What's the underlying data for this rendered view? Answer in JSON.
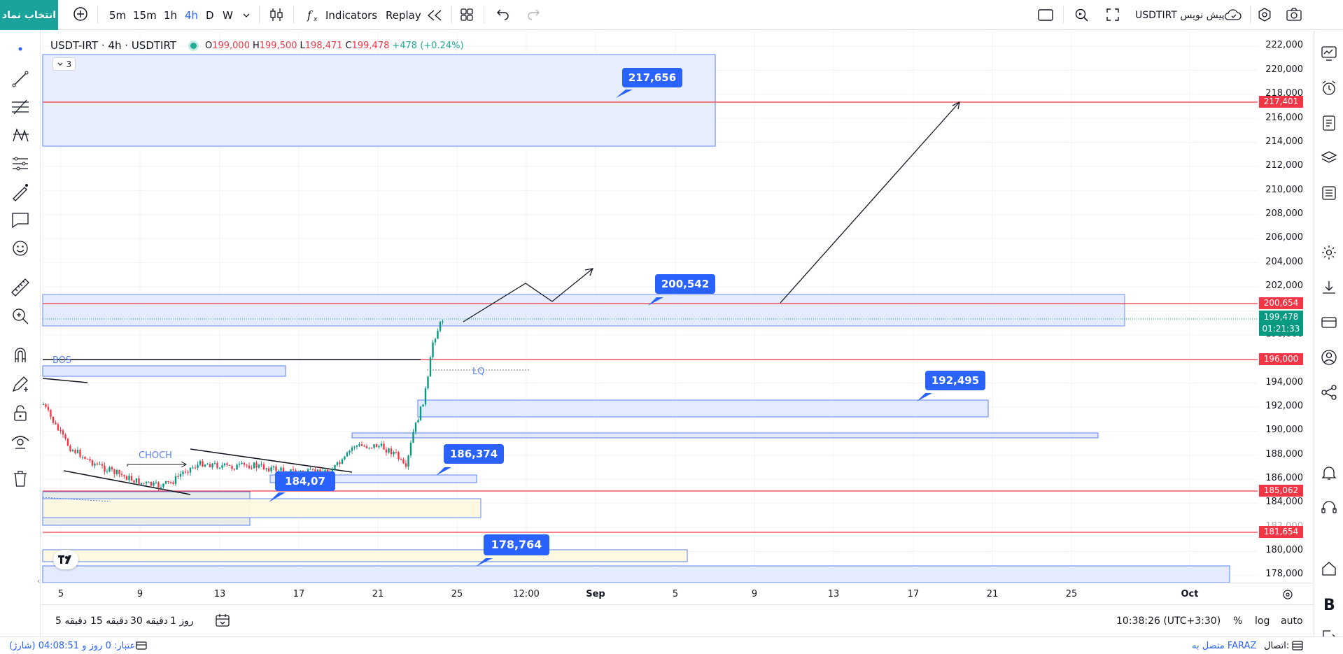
{
  "toolbar": {
    "symbol_search": "انتخاب نماد",
    "intervals": [
      "5m",
      "15m",
      "1h",
      "4h",
      "D",
      "W"
    ],
    "active_interval": "4h",
    "indicators_label": "Indicators",
    "replay_label": "Replay",
    "symbol_right": "USDTIRT پیش نویس"
  },
  "legend": {
    "symbol": "USDT-IRT · 4h · USDTIRT",
    "o_label": "O",
    "o_value": "199,000",
    "h_label": "H",
    "h_value": "199,500",
    "l_label": "L",
    "l_value": "198,471",
    "c_label": "C",
    "c_value": "199,478",
    "change": "+478 (+0.24%)",
    "indicator_count": "3"
  },
  "price_axis": {
    "ticks": [
      "222,000",
      "220,000",
      "218,000",
      "216,000",
      "214,000",
      "212,000",
      "210,000",
      "208,000",
      "206,000",
      "204,000",
      "202,000",
      "198,000",
      "194,000",
      "192,000",
      "190,000",
      "188,000",
      "186,000",
      "184,000",
      "182,000",
      "180,000",
      "178,000"
    ],
    "horizontal_levels": [
      "217,401",
      "200,654",
      "196,000",
      "185,062",
      "181,654"
    ],
    "current_price": "199,478",
    "countdown": "01:21:33"
  },
  "time_axis": {
    "labels": [
      "5",
      "9",
      "13",
      "17",
      "21",
      "25",
      "12:00",
      "Sep",
      "5",
      "9",
      "13",
      "17",
      "21",
      "25",
      "Oct"
    ]
  },
  "annotations": {
    "callouts": [
      "217,656",
      "200,542",
      "192,495",
      "186,374",
      "184,07",
      "178,764"
    ],
    "text_labels": [
      "BOS",
      "CHOCH",
      "LQ"
    ]
  },
  "bottom": {
    "ranges": [
      "5 دقیقه",
      "15 دقیقه",
      "30 دقیقه",
      "1 روز"
    ],
    "clock": "10:38:26 (UTC+3:30)",
    "percent": "%",
    "log": "log",
    "auto": "auto"
  },
  "status": {
    "credit": "اعتبار: 0 روز و 04:08:51 (شارژ)",
    "connection_label": "اتصال:",
    "connection_value": "متصل به FARAZ"
  },
  "colors": {
    "accent": "#1aa39a",
    "red_level": "#f23645",
    "callout_blue": "#2962ff",
    "up_candle": "#089981",
    "down_candle": "#f23645"
  }
}
